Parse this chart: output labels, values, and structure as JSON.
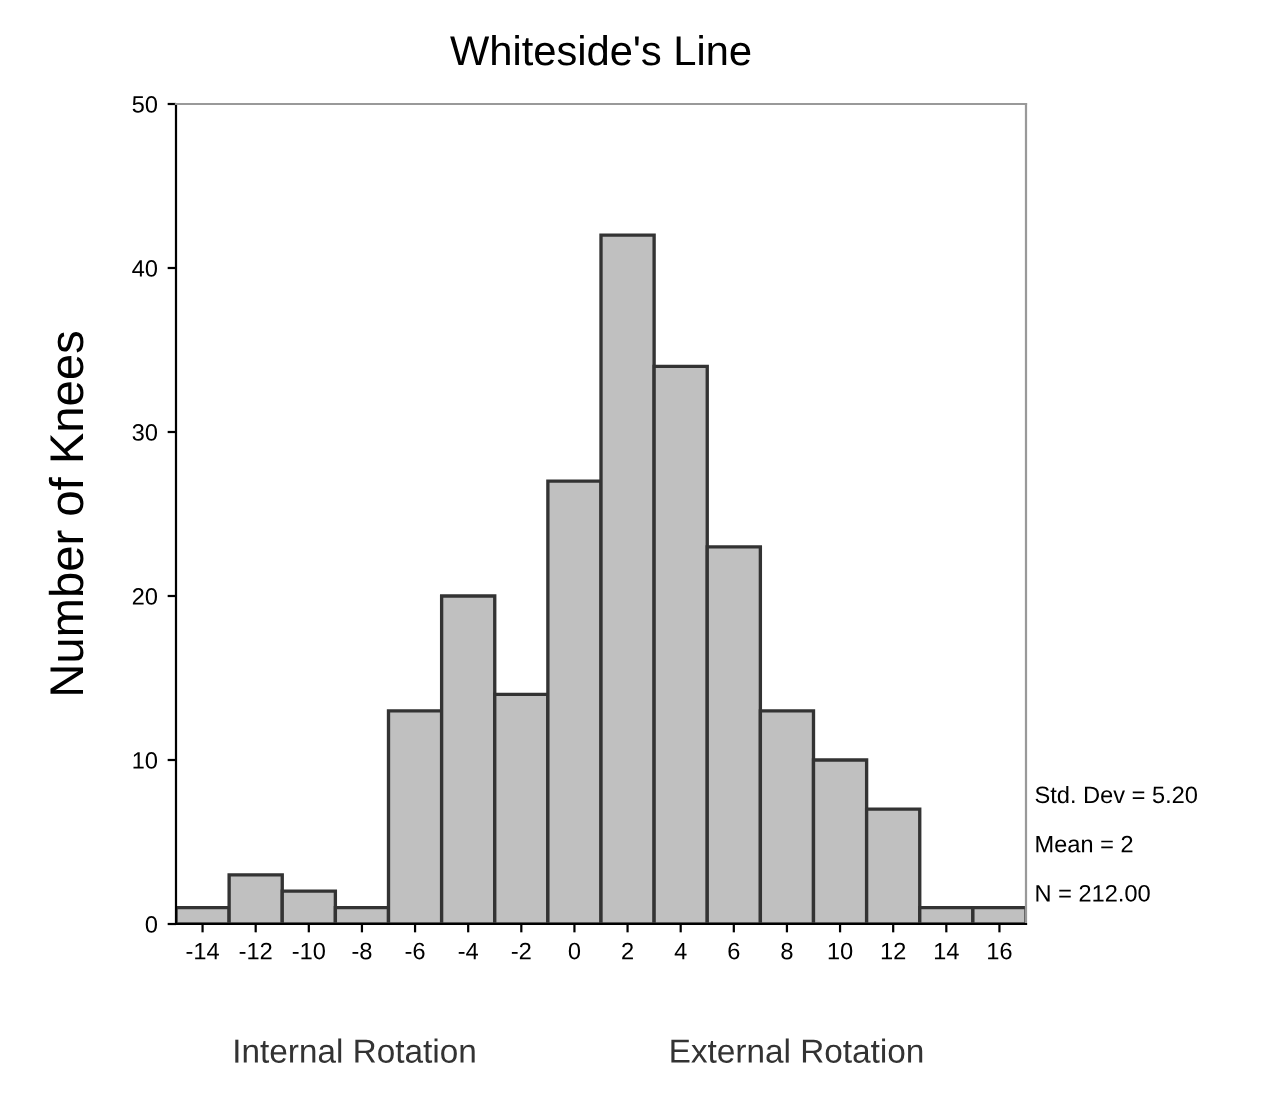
{
  "chart_data": {
    "type": "histogram",
    "title": "Whiteside's Line",
    "ylabel": "Number of Knees",
    "bins": [
      -15,
      -13,
      -11,
      -9,
      -7,
      -5,
      -3,
      -1,
      1,
      3,
      5,
      7,
      9,
      11,
      13,
      15,
      17
    ],
    "values": [
      1,
      3,
      2,
      1,
      13,
      20,
      14,
      27,
      42,
      34,
      23,
      13,
      10,
      7,
      1,
      1
    ],
    "color": "#c0c0c0",
    "xlim": [
      -15,
      17
    ],
    "xticks": [
      -14,
      -12,
      -10,
      -8,
      -6,
      -4,
      -2,
      0,
      2,
      4,
      6,
      8,
      10,
      12,
      14,
      16
    ],
    "ylim": [
      0,
      50
    ],
    "yticks": [
      0,
      10,
      20,
      30,
      40,
      50
    ],
    "grid": false,
    "legend": false,
    "annotations": [
      "Std. Dev = 5.20",
      "Mean = 2",
      "N = 212.00",
      "Internal Rotation",
      "External Rotation"
    ]
  }
}
